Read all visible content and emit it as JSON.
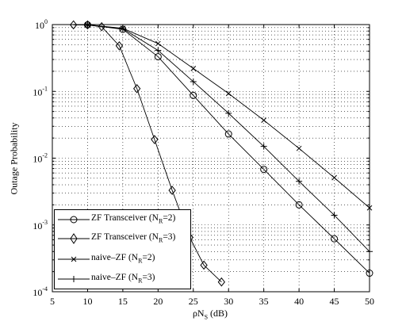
{
  "chart_data": {
    "type": "line",
    "title": "",
    "xlabel": "ρN",
    "xlabel_sub": "S",
    "xlabel_unit": " (dB)",
    "ylabel": "Outage Probability",
    "xlim": [
      5,
      50
    ],
    "ylim": [
      0.0001,
      1
    ],
    "yscale": "log",
    "grid": true,
    "legend_position": "bottom-left",
    "x_ticks": [
      5,
      10,
      15,
      20,
      25,
      30,
      35,
      40,
      45,
      50
    ],
    "y_ticks": [
      {
        "base": "10",
        "exp": "0",
        "value": 1
      },
      {
        "base": "10",
        "exp": "-1",
        "value": 0.1
      },
      {
        "base": "10",
        "exp": "-2",
        "value": 0.01
      },
      {
        "base": "10",
        "exp": "-3",
        "value": 0.001
      },
      {
        "base": "10",
        "exp": "-4",
        "value": 0.0001
      }
    ],
    "series": [
      {
        "name_main": "ZF Transceiver (N",
        "name_sub": "R",
        "name_tail": "=2)",
        "marker": "circle",
        "x": [
          10,
          15,
          20,
          25,
          30,
          35,
          40,
          45,
          50
        ],
        "y": [
          0.99,
          0.85,
          0.33,
          0.087,
          0.023,
          0.0068,
          0.002,
          0.00062,
          0.00019
        ]
      },
      {
        "name_main": "ZF Transceiver (N",
        "name_sub": "R",
        "name_tail": "=3)",
        "marker": "diamond",
        "x": [
          8,
          10,
          12,
          14.5,
          17,
          19.5,
          22,
          24.5,
          26.5,
          29
        ],
        "y": [
          0.99,
          0.99,
          0.93,
          0.48,
          0.11,
          0.019,
          0.0033,
          0.00065,
          0.00025,
          0.00014
        ]
      },
      {
        "name_main": "naive–ZF (N",
        "name_sub": "R",
        "name_tail": "=2)",
        "marker": "x",
        "x": [
          10,
          15,
          20,
          25,
          30,
          35,
          40,
          45,
          50
        ],
        "y": [
          0.99,
          0.88,
          0.52,
          0.22,
          0.093,
          0.037,
          0.014,
          0.0051,
          0.0018
        ]
      },
      {
        "name_main": "naive–ZF (N",
        "name_sub": "R",
        "name_tail": "=3)",
        "marker": "plus",
        "x": [
          10,
          15,
          20,
          25,
          30,
          35,
          40,
          45,
          50
        ],
        "y": [
          0.99,
          0.87,
          0.41,
          0.14,
          0.047,
          0.015,
          0.0045,
          0.0014,
          0.0004
        ]
      }
    ]
  }
}
